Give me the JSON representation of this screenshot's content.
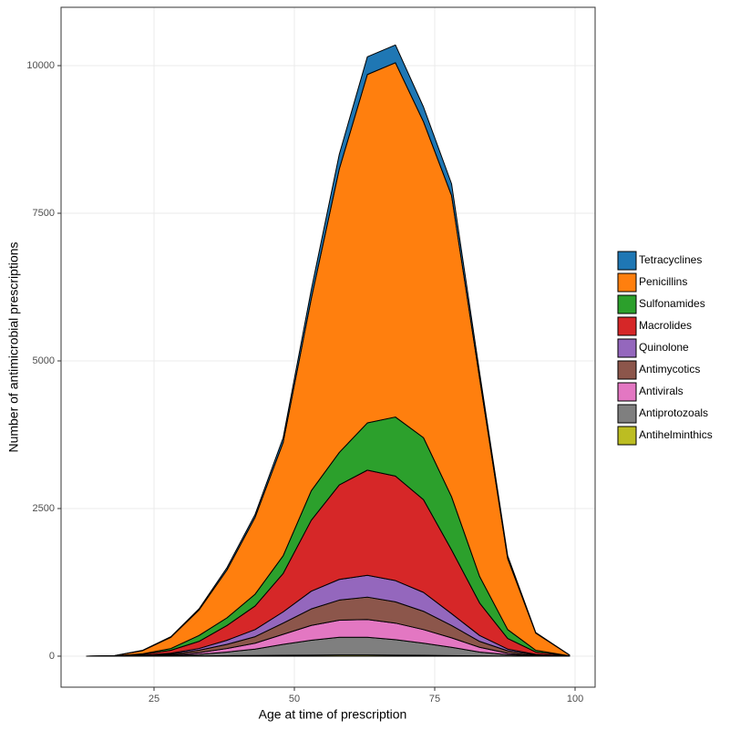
{
  "chart_data": {
    "type": "stacked_area",
    "x_label": "Age at time of prescription",
    "y_label": "Number of antimicrobial prescriptions",
    "x": [
      13,
      18,
      23,
      28,
      33,
      38,
      43,
      48,
      53,
      58,
      63,
      68,
      73,
      78,
      83,
      88,
      93,
      99
    ],
    "series": [
      {
        "name": "Tetracyclines",
        "color": "#1f77b4",
        "values": [
          0,
          0,
          5,
          10,
          20,
          40,
          50,
          80,
          150,
          250,
          300,
          300,
          250,
          200,
          100,
          50,
          10,
          0
        ]
      },
      {
        "name": "Penicillins",
        "color": "#ff7f0e",
        "values": [
          0,
          5,
          55,
          190,
          430,
          810,
          1300,
          1920,
          3250,
          4800,
          5900,
          6000,
          5350,
          5100,
          3350,
          1200,
          290,
          15
        ]
      },
      {
        "name": "Sulfonamides",
        "color": "#2ca02c",
        "values": [
          0,
          1,
          10,
          30,
          100,
          130,
          200,
          300,
          500,
          550,
          800,
          1000,
          1050,
          900,
          450,
          150,
          30,
          0
        ]
      },
      {
        "name": "Macrolides",
        "color": "#d62728",
        "values": [
          0,
          2,
          15,
          50,
          120,
          250,
          400,
          650,
          1200,
          1600,
          1780,
          1770,
          1570,
          1080,
          550,
          180,
          40,
          3
        ]
      },
      {
        "name": "Quinolone",
        "color": "#9467bd",
        "values": [
          0,
          1,
          5,
          15,
          30,
          70,
          120,
          190,
          300,
          350,
          370,
          360,
          320,
          200,
          100,
          30,
          10,
          1
        ]
      },
      {
        "name": "Antimycotics",
        "color": "#8c564b",
        "values": [
          0,
          0,
          5,
          15,
          40,
          70,
          110,
          190,
          280,
          340,
          380,
          360,
          310,
          210,
          100,
          40,
          10,
          1
        ]
      },
      {
        "name": "Antivirals",
        "color": "#e377c2",
        "values": [
          0,
          1,
          3,
          10,
          30,
          60,
          100,
          170,
          250,
          290,
          300,
          280,
          230,
          160,
          80,
          25,
          5,
          0
        ]
      },
      {
        "name": "Antiprotozoals",
        "color": "#7f7f7f",
        "values": [
          0,
          0,
          2,
          8,
          25,
          62,
          108,
          185,
          252,
          300,
          300,
          262,
          205,
          140,
          65,
          23,
          5,
          0
        ]
      },
      {
        "name": "Antihelminthics",
        "color": "#bcbd22",
        "values": [
          0,
          0,
          0,
          2,
          5,
          8,
          12,
          15,
          18,
          20,
          20,
          18,
          15,
          10,
          5,
          2,
          0,
          0
        ]
      }
    ],
    "xlim": [
      8.44,
      103.57
    ],
    "ylim": [
      -525,
      10988
    ],
    "xticks": [
      25,
      50,
      75,
      100
    ],
    "yticks": [
      0,
      2500,
      5000,
      7500,
      10000
    ],
    "grid": true,
    "legend": "right"
  }
}
